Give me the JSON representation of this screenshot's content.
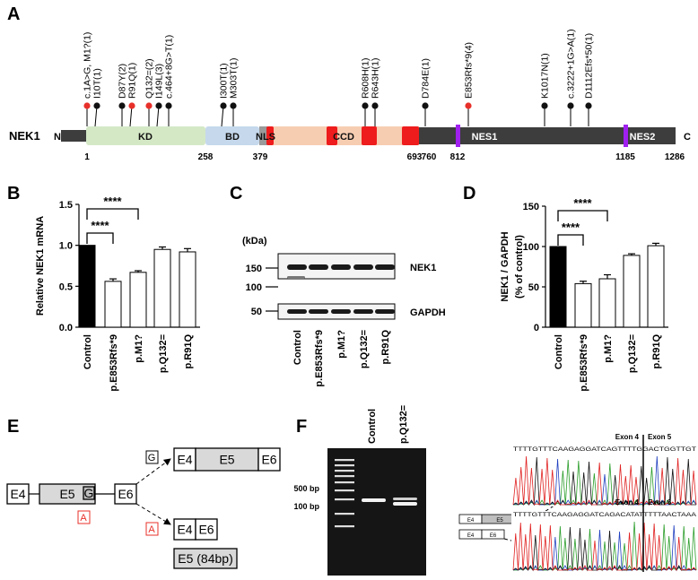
{
  "panel_letters": [
    "A",
    "B",
    "C",
    "D",
    "E",
    "F"
  ],
  "panel_a": {
    "protein": "NEK1",
    "n_term": "N",
    "c_term": "C",
    "domains": [
      "KD",
      "BD",
      "NLS",
      "CCD",
      "NES1",
      "NES2"
    ],
    "positions": [
      "1",
      "258",
      "379",
      "693",
      "760",
      "812",
      "1185",
      "1286"
    ],
    "variants": [
      {
        "label": "c.1A>G, M1?(1)",
        "color": "#e8302a"
      },
      {
        "label": "I10T(1)",
        "color": "#111"
      },
      {
        "label": "D87Y(2)",
        "color": "#111"
      },
      {
        "label": "R91Q(1)",
        "color": "#e8302a"
      },
      {
        "label": "Q132=(2)",
        "color": "#e8302a"
      },
      {
        "label": "I149L(3)",
        "color": "#111"
      },
      {
        "label": "c.464+8G>T(1)",
        "color": "#111"
      },
      {
        "label": "I300T(1)",
        "color": "#111"
      },
      {
        "label": "M303T(1)",
        "color": "#111"
      },
      {
        "label": "R608H(1)",
        "color": "#111"
      },
      {
        "label": "R643H(1)",
        "color": "#111"
      },
      {
        "label": "D784E(1)",
        "color": "#111"
      },
      {
        "label": "E853Rfs*9(4)",
        "color": "#e8302a"
      },
      {
        "label": "K1017N(1)",
        "color": "#111"
      },
      {
        "label": "c.3222+1G>A(1)",
        "color": "#111"
      },
      {
        "label": "D1112Efs*50(1)",
        "color": "#111"
      }
    ]
  },
  "chart_data": [
    {
      "type": "bar",
      "ylabel": "Relative NEK1 mRNA",
      "categories": [
        "Control",
        "p.E853Rfs*9",
        "p.M1?",
        "p.Q132=",
        "p.R91Q"
      ],
      "values": [
        1.0,
        0.56,
        0.67,
        0.95,
        0.92
      ],
      "errors": [
        0.0,
        0.03,
        0.02,
        0.03,
        0.04
      ],
      "colors": [
        "#000000",
        "#ffffff",
        "#ffffff",
        "#ffffff",
        "#ffffff"
      ],
      "ylim": [
        0,
        1.5
      ],
      "yticks": [
        {
          "value": 0,
          "label": "0.0"
        },
        {
          "value": 0.5,
          "label": "0.5"
        },
        {
          "value": 1,
          "label": "1.0"
        },
        {
          "value": 1.5,
          "label": "1.5"
        }
      ],
      "significance": [
        "****",
        "****"
      ]
    },
    {
      "type": "bar",
      "ylabel": [
        "NEK1 / GAPDH",
        "(% of control)"
      ],
      "categories": [
        "Control",
        "p.E853Rfs*9",
        "p.M1?",
        "p.Q132=",
        "p.R91Q"
      ],
      "values": [
        100,
        54,
        60,
        89,
        101
      ],
      "errors": [
        0,
        3,
        5,
        2,
        3
      ],
      "colors": [
        "#000000",
        "#ffffff",
        "#ffffff",
        "#ffffff",
        "#ffffff"
      ],
      "ylim": [
        0,
        150
      ],
      "yticks": [
        0,
        50,
        100,
        150
      ],
      "significance": [
        "****",
        "****"
      ]
    }
  ],
  "panel_c": {
    "unit": "(kDa)",
    "markers": [
      "150",
      "100",
      "50"
    ],
    "bands": [
      "NEK1",
      "GAPDH"
    ],
    "lanes": [
      "Control",
      "p.E853Rfs*9",
      "p.M1?",
      "p.Q132=",
      "p.R91Q"
    ]
  },
  "panel_e": {
    "genomic": [
      "E4",
      "E5",
      "G",
      "E6"
    ],
    "mutant_base": "A",
    "wild_base": "G",
    "wt_transcript": [
      "E4",
      "E5",
      "E6"
    ],
    "mut_base2": "A",
    "mut_transcript": [
      "E4",
      "E6"
    ],
    "excluded": "E5 (84bp)"
  },
  "panel_f": {
    "lanes": [
      "Control",
      "p.Q132="
    ],
    "ladder": [
      "500 bp",
      "100 bp"
    ],
    "box_long": [
      "E4",
      "E5",
      "E6"
    ],
    "box_short": [
      "E4",
      "E6"
    ],
    "trace_top": {
      "left": "Exon 4",
      "right": "Exon 5",
      "seq": "TTTTGTTTCAAGAGGATCAGTTTTGGACTGGTTGT"
    },
    "trace_bottom": {
      "left": "Exon 4",
      "right": "Exon 6",
      "seq": "TTTTGTTTCAAGAGGATCAGACATATTTTTAACTAAA"
    }
  }
}
